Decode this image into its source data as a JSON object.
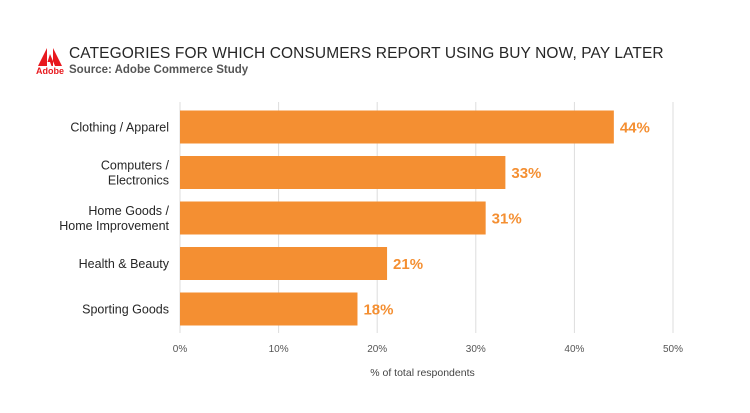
{
  "logo": {
    "text": "Adobe",
    "color": "#e8191e"
  },
  "chart_data": {
    "type": "bar",
    "orientation": "horizontal",
    "title": "CATEGORIES FOR WHICH CONSUMERS REPORT USING BUY NOW, PAY LATER",
    "subtitle": "Source: Adobe Commerce Study",
    "categories": [
      [
        "Clothing / Apparel"
      ],
      [
        "Computers /",
        "Electronics"
      ],
      [
        "Home Goods /",
        "Home Improvement"
      ],
      [
        "Health & Beauty"
      ],
      [
        "Sporting Goods"
      ]
    ],
    "values": [
      44,
      33,
      31,
      21,
      18
    ],
    "value_labels": [
      "44%",
      "33%",
      "31%",
      "21%",
      "18%"
    ],
    "xlim": [
      0,
      50
    ],
    "ticks": [
      0,
      10,
      20,
      30,
      40,
      50
    ],
    "tick_labels": [
      "0%",
      "10%",
      "20%",
      "30%",
      "40%",
      "50%"
    ],
    "xlabel": "% of total respondents",
    "ylabel": "",
    "grid": true,
    "bar_color": "#f48f32",
    "grid_color": "#dddddd"
  }
}
